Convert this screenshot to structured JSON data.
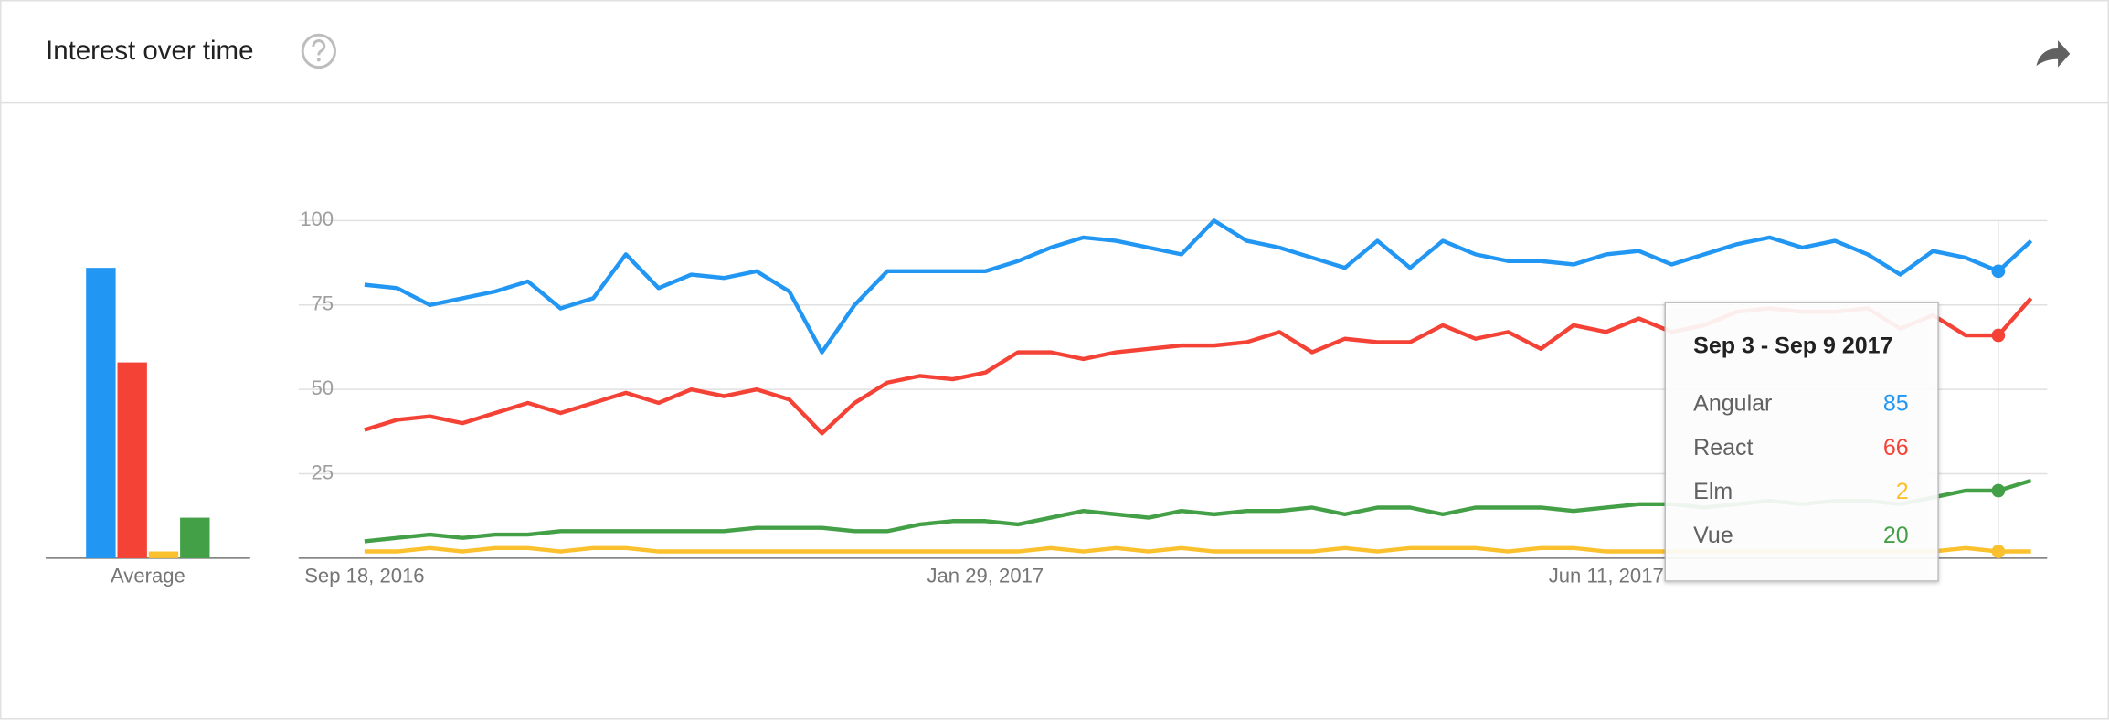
{
  "chart_data": {
    "type": "line",
    "title": "Interest over time",
    "categories": [
      "Sep 18, 2016",
      null,
      null,
      null,
      null,
      null,
      null,
      null,
      null,
      null,
      null,
      null,
      null,
      null,
      null,
      null,
      null,
      null,
      null,
      "Jan 29, 2017",
      null,
      null,
      null,
      null,
      null,
      null,
      null,
      null,
      null,
      null,
      null,
      null,
      null,
      null,
      null,
      null,
      null,
      null,
      "Jun 11, 2017",
      null,
      null,
      null,
      null,
      null,
      null,
      null,
      null,
      null,
      null,
      null,
      null,
      null
    ],
    "series": [
      {
        "name": "Angular",
        "color": "#2196f3",
        "values": [
          81,
          80,
          75,
          77,
          79,
          82,
          74,
          77,
          90,
          80,
          84,
          83,
          85,
          79,
          61,
          75,
          85,
          85,
          85,
          85,
          88,
          92,
          95,
          94,
          92,
          90,
          100,
          94,
          92,
          89,
          86,
          94,
          86,
          94,
          90,
          88,
          88,
          87,
          90,
          91,
          87,
          90,
          93,
          95,
          92,
          94,
          90,
          84,
          91,
          89,
          85,
          94
        ]
      },
      {
        "name": "React",
        "color": "#f44336",
        "values": [
          38,
          41,
          42,
          40,
          43,
          46,
          43,
          46,
          49,
          46,
          50,
          48,
          50,
          47,
          37,
          46,
          52,
          54,
          53,
          55,
          61,
          61,
          59,
          61,
          62,
          63,
          63,
          64,
          67,
          61,
          65,
          64,
          64,
          69,
          65,
          67,
          62,
          69,
          67,
          71,
          67,
          69,
          73,
          74,
          73,
          73,
          74,
          68,
          72,
          66,
          66,
          77
        ]
      },
      {
        "name": "Elm",
        "color": "#fbc02d",
        "values": [
          2,
          2,
          3,
          2,
          3,
          3,
          2,
          3,
          3,
          2,
          2,
          2,
          2,
          2,
          2,
          2,
          2,
          2,
          2,
          2,
          2,
          3,
          2,
          3,
          2,
          3,
          2,
          2,
          2,
          2,
          3,
          2,
          3,
          3,
          3,
          2,
          3,
          3,
          2,
          2,
          2,
          2,
          2,
          2,
          2,
          2,
          2,
          2,
          2,
          3,
          2,
          2
        ]
      },
      {
        "name": "Vue",
        "color": "#43a047",
        "values": [
          5,
          6,
          7,
          6,
          7,
          7,
          8,
          8,
          8,
          8,
          8,
          8,
          9,
          9,
          9,
          8,
          8,
          10,
          11,
          11,
          10,
          12,
          14,
          13,
          12,
          14,
          13,
          14,
          14,
          15,
          13,
          15,
          15,
          13,
          15,
          15,
          15,
          14,
          15,
          16,
          16,
          15,
          16,
          17,
          16,
          17,
          17,
          16,
          18,
          20,
          20,
          23
        ]
      }
    ],
    "ylim": [
      0,
      100
    ],
    "yticks": [
      25,
      50,
      75,
      100
    ],
    "grid": true,
    "averages": {
      "label": "Average",
      "values": [
        86,
        58,
        2,
        12
      ]
    },
    "tooltip": {
      "title": "Sep 3 - Sep 9 2017"
    }
  }
}
